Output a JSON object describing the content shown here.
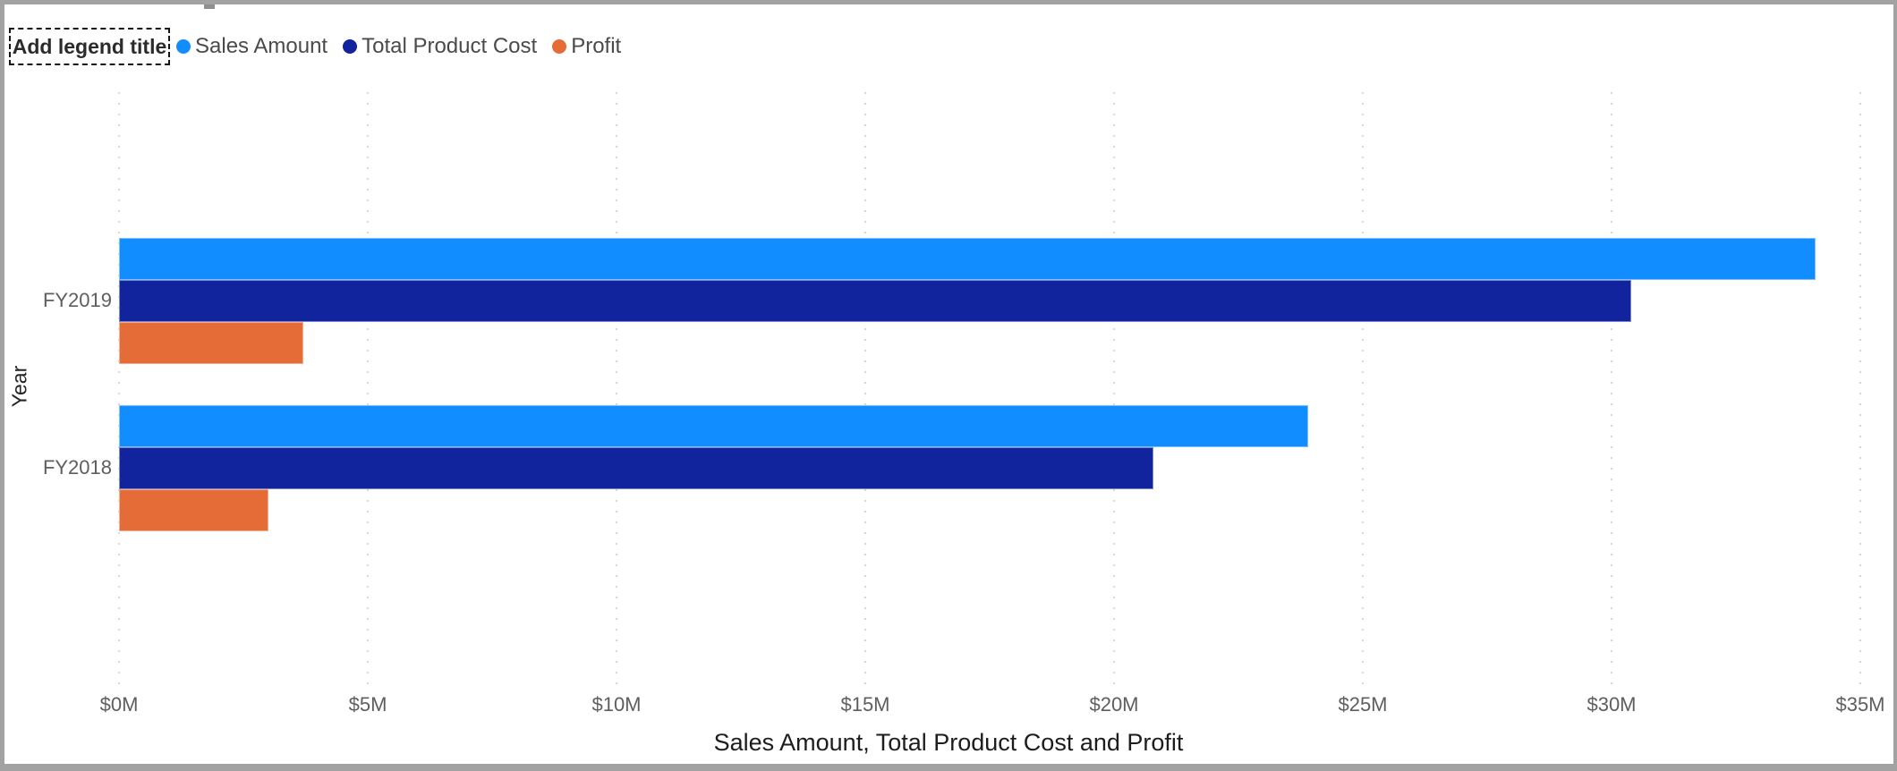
{
  "visual": {
    "type_label": "Clustered bar chart",
    "border_color": "#A2A2A2"
  },
  "legend": {
    "title_placeholder": "Add legend title",
    "items": [
      {
        "label": "Sales Amount",
        "color": "#118DFF"
      },
      {
        "label": "Total Product Cost",
        "color": "#12239E"
      },
      {
        "label": "Profit",
        "color": "#E66C37"
      }
    ]
  },
  "chart_data": {
    "type": "bar",
    "orientation": "horizontal",
    "title": "",
    "xlabel": "Sales Amount, Total Product Cost and Profit",
    "ylabel": "Year",
    "categories": [
      "FY2019",
      "FY2018"
    ],
    "series": [
      {
        "name": "Sales Amount",
        "color": "#118DFF",
        "values": [
          34.1,
          23.9
        ]
      },
      {
        "name": "Total Product Cost",
        "color": "#12239E",
        "values": [
          30.4,
          20.8
        ]
      },
      {
        "name": "Profit",
        "color": "#E66C37",
        "values": [
          3.7,
          3.0
        ]
      }
    ],
    "value_unit": "millions USD",
    "xlim": [
      0,
      35
    ],
    "x_tick_values": [
      0,
      5,
      10,
      15,
      20,
      25,
      30,
      35
    ],
    "x_ticks": [
      "$0M",
      "$5M",
      "$10M",
      "$15M",
      "$20M",
      "$25M",
      "$30M",
      "$35M"
    ],
    "grid": "vertical-dotted",
    "gridline_color": "#D7D7D7",
    "legend_position": "top-left"
  }
}
